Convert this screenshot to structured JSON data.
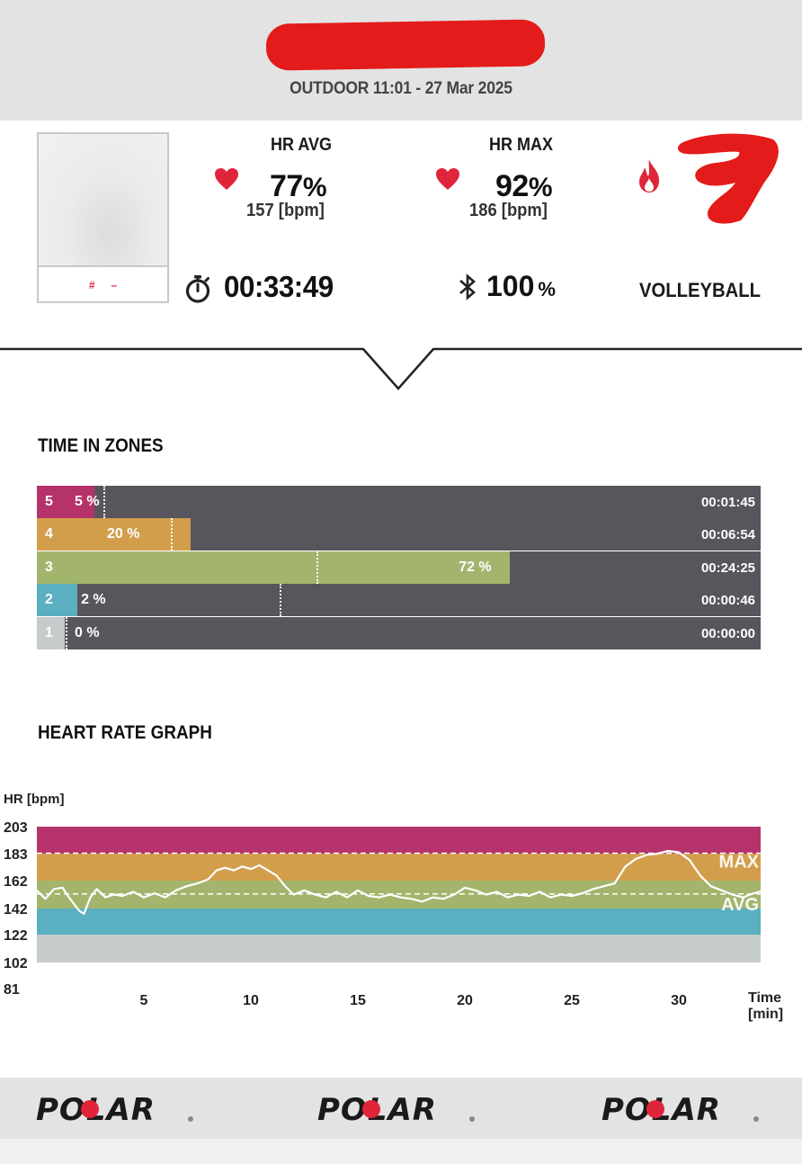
{
  "session": {
    "title": "OUTDOOR 11:01 - 27 Mar 2025"
  },
  "user": {
    "id_hash": "#",
    "id_dash": "–"
  },
  "stats": {
    "hr_avg_label": "HR AVG",
    "hr_avg_pct": "77",
    "hr_avg_pct_unit": "%",
    "hr_avg_bpm": "157 [bpm]",
    "hr_max_label": "HR MAX",
    "hr_max_pct": "92",
    "hr_max_pct_unit": "%",
    "hr_max_bpm": "186 [bpm]",
    "duration": "00:33:49",
    "battery_value": "100",
    "battery_unit": "%",
    "sport": "VOLLEYBALL"
  },
  "icons": {
    "heart": "heart-icon",
    "flame": "flame-icon",
    "stopwatch": "stopwatch-icon",
    "bluetooth": "bluetooth-icon"
  },
  "colors": {
    "heart": "#e0243a",
    "redaction": "#e41b1b",
    "zone5": "#b5336a",
    "zone4": "#d29e4c",
    "zone3": "#a3b56c",
    "zone2": "#5aafc1",
    "zone1": "#c6cbcb",
    "zone_track": "#58555d"
  },
  "zones": {
    "title": "TIME IN ZONES",
    "rows": [
      {
        "zone": "5",
        "pct_label": "5 %",
        "time": "00:01:45",
        "fraction": 0.08,
        "marker": 0.092,
        "color": "#b5336a"
      },
      {
        "zone": "4",
        "pct_label": "20 %",
        "time": "00:06:54",
        "fraction": 0.212,
        "marker": 0.185,
        "color": "#d29e4c"
      },
      {
        "zone": "3",
        "pct_label": "72 %",
        "time": "00:24:25",
        "fraction": 0.653,
        "marker": 0.386,
        "color": "#a3b56c"
      },
      {
        "zone": "2",
        "pct_label": "2 %",
        "time": "00:00:46",
        "fraction": 0.056,
        "marker": 0.335,
        "color": "#5aafc1"
      },
      {
        "zone": "1",
        "pct_label": "0 %",
        "time": "00:00:00",
        "fraction": 0.038,
        "marker": 0.04,
        "color": "#c6cbcb"
      }
    ]
  },
  "hr_graph": {
    "title": "HEART RATE GRAPH",
    "y_unit": "HR [bpm]",
    "x_unit_line1": "Time",
    "x_unit_line2": "[min]",
    "max_label": "MAX",
    "avg_label": "AVG"
  },
  "chart_data": {
    "type": "line",
    "xlabel": "Time [min]",
    "ylabel": "HR [bpm]",
    "xlim": [
      0,
      34
    ],
    "ylim": [
      81,
      203
    ],
    "x_ticks": [
      5,
      10,
      15,
      20,
      25,
      30
    ],
    "y_ticks": [
      81,
      102,
      122,
      142,
      162,
      183,
      203
    ],
    "zones": [
      {
        "from": 102,
        "to": 122,
        "color": "#c6cbcb"
      },
      {
        "from": 122,
        "to": 142,
        "color": "#5aafc1"
      },
      {
        "from": 142,
        "to": 162,
        "color": "#a3b56c"
      },
      {
        "from": 162,
        "to": 183,
        "color": "#d29e4c"
      },
      {
        "from": 183,
        "to": 203,
        "color": "#b5336a"
      }
    ],
    "max_line": 186,
    "avg_line": 157,
    "series": [
      {
        "values": [
          [
            0,
            155
          ],
          [
            0.4,
            149
          ],
          [
            0.8,
            156
          ],
          [
            1.2,
            157
          ],
          [
            1.5,
            150
          ],
          [
            1.8,
            144
          ],
          [
            2.0,
            140
          ],
          [
            2.2,
            138
          ],
          [
            2.5,
            150
          ],
          [
            2.8,
            156
          ],
          [
            3.2,
            150
          ],
          [
            3.6,
            152
          ],
          [
            4.0,
            151
          ],
          [
            4.5,
            154
          ],
          [
            5.0,
            150
          ],
          [
            5.5,
            153
          ],
          [
            6.0,
            150
          ],
          [
            6.5,
            155
          ],
          [
            7.0,
            158
          ],
          [
            7.5,
            160
          ],
          [
            8.0,
            163
          ],
          [
            8.4,
            170
          ],
          [
            8.8,
            172
          ],
          [
            9.2,
            170
          ],
          [
            9.6,
            173
          ],
          [
            10.0,
            171
          ],
          [
            10.4,
            174
          ],
          [
            10.8,
            170
          ],
          [
            11.2,
            166
          ],
          [
            11.6,
            158
          ],
          [
            12.0,
            152
          ],
          [
            12.5,
            155
          ],
          [
            13.0,
            152
          ],
          [
            13.5,
            150
          ],
          [
            14.0,
            154
          ],
          [
            14.5,
            150
          ],
          [
            15.0,
            155
          ],
          [
            15.5,
            151
          ],
          [
            16.0,
            150
          ],
          [
            16.5,
            152
          ],
          [
            17.0,
            150
          ],
          [
            17.5,
            149
          ],
          [
            18.0,
            147
          ],
          [
            18.5,
            150
          ],
          [
            19.0,
            149
          ],
          [
            19.5,
            152
          ],
          [
            20.0,
            157
          ],
          [
            20.5,
            155
          ],
          [
            21.0,
            152
          ],
          [
            21.5,
            154
          ],
          [
            22.0,
            150
          ],
          [
            22.5,
            152
          ],
          [
            23.0,
            151
          ],
          [
            23.5,
            154
          ],
          [
            24.0,
            150
          ],
          [
            24.5,
            152
          ],
          [
            25.0,
            151
          ],
          [
            25.5,
            153
          ],
          [
            26.0,
            156
          ],
          [
            26.5,
            158
          ],
          [
            27.0,
            160
          ],
          [
            27.5,
            173
          ],
          [
            28.0,
            179
          ],
          [
            28.5,
            182
          ],
          [
            29.0,
            183
          ],
          [
            29.5,
            185
          ],
          [
            30.0,
            184
          ],
          [
            30.5,
            178
          ],
          [
            31.0,
            166
          ],
          [
            31.5,
            158
          ],
          [
            32.0,
            155
          ],
          [
            32.5,
            152
          ],
          [
            33.0,
            150
          ],
          [
            33.5,
            153
          ],
          [
            34.0,
            155
          ]
        ]
      }
    ]
  },
  "footer": {
    "brand": "POLAR"
  }
}
